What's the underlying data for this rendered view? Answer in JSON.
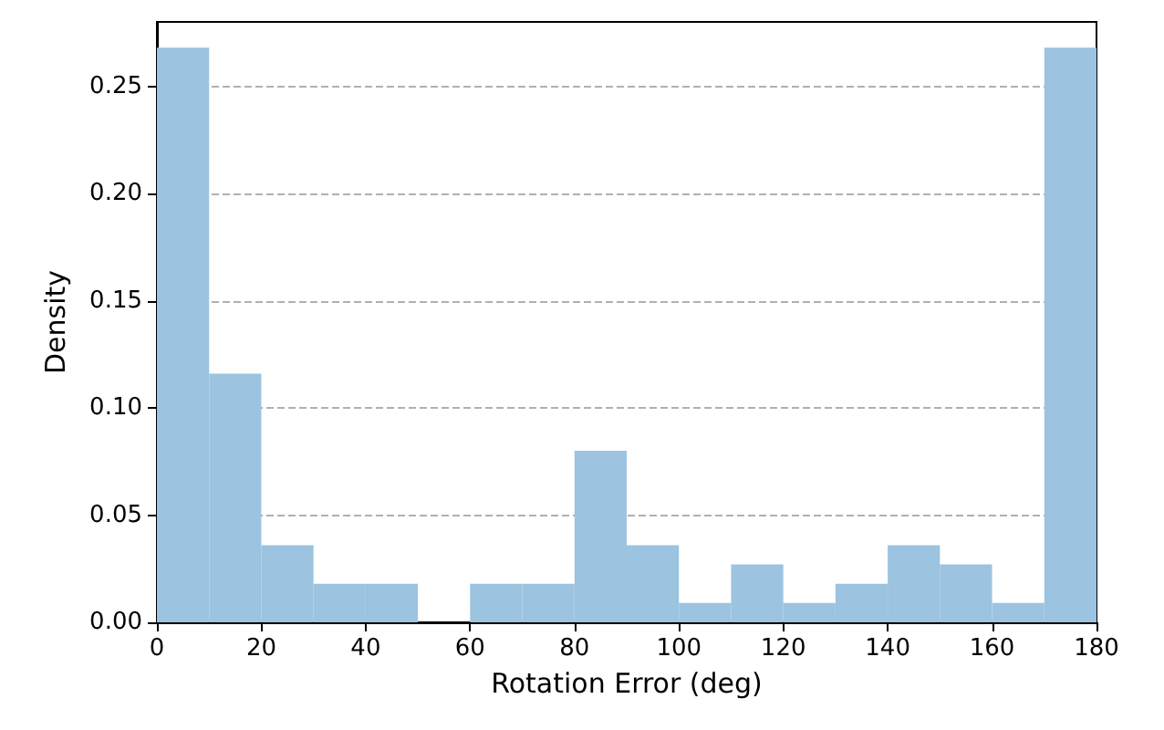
{
  "chart_data": {
    "type": "histogram",
    "xlabel": "Rotation Error (deg)",
    "ylabel": "Density",
    "color": "#9cc3e0",
    "bins": [
      0,
      10,
      20,
      30,
      40,
      50,
      60,
      70,
      80,
      90,
      100,
      110,
      120,
      130,
      140,
      150,
      160,
      170,
      180
    ],
    "values": [
      0.268,
      0.116,
      0.036,
      0.018,
      0.018,
      0,
      0.018,
      0.018,
      0.08,
      0.036,
      0.009,
      0.027,
      0.009,
      0.018,
      0.036,
      0.027,
      0.009,
      0.268
    ],
    "xlim": [
      0,
      180
    ],
    "ylim": [
      0,
      0.28
    ],
    "xticks": [
      0,
      20,
      40,
      60,
      80,
      100,
      120,
      140,
      160,
      180
    ],
    "yticks": [
      {
        "value": 0,
        "label": "0.00"
      },
      {
        "value": 0.05,
        "label": "0.05"
      },
      {
        "value": 0.1,
        "label": "0.10"
      },
      {
        "value": 0.15,
        "label": "0.15"
      },
      {
        "value": 0.2,
        "label": "0.20"
      },
      {
        "value": 0.25,
        "label": "0.25"
      }
    ],
    "grid": "y"
  }
}
